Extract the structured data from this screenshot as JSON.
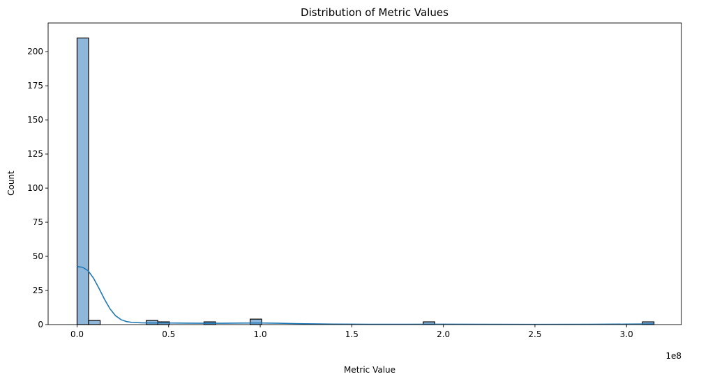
{
  "chart_data": {
    "type": "bar",
    "title": "Distribution of Metric Values",
    "xlabel": "Metric Value",
    "ylabel": "Count",
    "x_scale_label": "1e8",
    "xlim": [
      -0.158,
      3.3
    ],
    "ylim": [
      0,
      221
    ],
    "xticks": [
      {
        "value": 0.0,
        "label": "0.0"
      },
      {
        "value": 0.5,
        "label": "0.5"
      },
      {
        "value": 1.0,
        "label": "1.0"
      },
      {
        "value": 1.5,
        "label": "1.5"
      },
      {
        "value": 2.0,
        "label": "2.0"
      },
      {
        "value": 2.5,
        "label": "2.5"
      },
      {
        "value": 3.0,
        "label": "3.0"
      }
    ],
    "yticks": [
      {
        "value": 0,
        "label": "0"
      },
      {
        "value": 25,
        "label": "25"
      },
      {
        "value": 50,
        "label": "50"
      },
      {
        "value": 75,
        "label": "75"
      },
      {
        "value": 100,
        "label": "100"
      },
      {
        "value": 125,
        "label": "125"
      },
      {
        "value": 150,
        "label": "150"
      },
      {
        "value": 175,
        "label": "175"
      },
      {
        "value": 200,
        "label": "200"
      }
    ],
    "bins": [
      {
        "start": 0.0,
        "end": 0.063,
        "count": 210
      },
      {
        "start": 0.063,
        "end": 0.126,
        "count": 3
      },
      {
        "start": 0.378,
        "end": 0.441,
        "count": 3
      },
      {
        "start": 0.441,
        "end": 0.504,
        "count": 2
      },
      {
        "start": 0.693,
        "end": 0.756,
        "count": 2
      },
      {
        "start": 0.945,
        "end": 1.008,
        "count": 4
      },
      {
        "start": 1.89,
        "end": 1.953,
        "count": 2
      },
      {
        "start": 3.087,
        "end": 3.15,
        "count": 2
      }
    ],
    "kde": {
      "x": [
        0.0,
        0.03,
        0.06,
        0.09,
        0.12,
        0.15,
        0.18,
        0.21,
        0.24,
        0.27,
        0.3,
        0.35,
        0.4,
        0.5,
        0.6,
        0.7,
        0.8,
        0.9,
        1.0,
        1.1,
        1.2,
        1.4,
        1.6,
        1.8,
        2.0,
        2.2,
        2.5,
        2.8,
        3.0,
        3.15
      ],
      "y": [
        42.5,
        42.0,
        39.5,
        34.0,
        26.5,
        18.5,
        11.5,
        6.5,
        3.6,
        2.2,
        1.6,
        1.3,
        1.2,
        1.15,
        1.05,
        1.0,
        1.0,
        1.1,
        1.15,
        1.0,
        0.7,
        0.35,
        0.2,
        0.25,
        0.3,
        0.2,
        0.15,
        0.2,
        0.35,
        0.5
      ]
    },
    "colors": {
      "bar_fill": "#8fb7d9",
      "bar_edge": "#000000",
      "kde_line": "#1f77b4",
      "axis": "#000000"
    },
    "grid": false
  }
}
